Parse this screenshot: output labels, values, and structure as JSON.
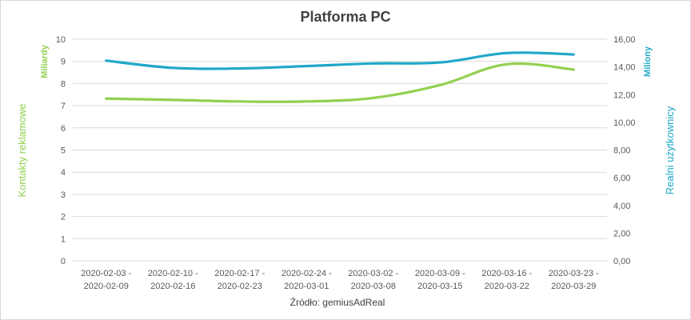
{
  "chart_data": {
    "type": "line",
    "title": "Platforma PC",
    "categories": [
      [
        "2020-02-03 -",
        "2020-02-09"
      ],
      [
        "2020-02-10 -",
        "2020-02-16"
      ],
      [
        "2020-02-17 -",
        "2020-02-23"
      ],
      [
        "2020-02-24 -",
        "2020-03-01"
      ],
      [
        "2020-03-02 -",
        "2020-03-08"
      ],
      [
        "2020-03-09 -",
        "2020-03-15"
      ],
      [
        "2020-03-16 -",
        "2020-03-22"
      ],
      [
        "2020-03-23 -",
        "2020-03-29"
      ]
    ],
    "left_axis": {
      "label": "Kontakty reklamowe",
      "unit": "Miliardy",
      "range": [
        0,
        10
      ],
      "ticks": [
        "0",
        "1",
        "2",
        "3",
        "4",
        "5",
        "6",
        "7",
        "8",
        "9",
        "10"
      ]
    },
    "right_axis": {
      "label": "Realni użytkownicy",
      "unit": "Miliony",
      "range": [
        0,
        16
      ],
      "ticks": [
        "0,00",
        "2,00",
        "4,00",
        "6,00",
        "8,00",
        "10,00",
        "12,00",
        "14,00",
        "16,00"
      ]
    },
    "series": [
      {
        "axis": "left",
        "color": "#92d050",
        "values": [
          7.32,
          7.26,
          7.19,
          7.19,
          7.35,
          7.93,
          8.87,
          8.63
        ]
      },
      {
        "axis": "right",
        "color": "#1fa8c8",
        "values": [
          14.45,
          13.93,
          13.89,
          14.06,
          14.25,
          14.32,
          15.0,
          14.9
        ]
      }
    ],
    "grid": true,
    "legend": "none",
    "source": "Źródło: gemiusAdReal"
  }
}
